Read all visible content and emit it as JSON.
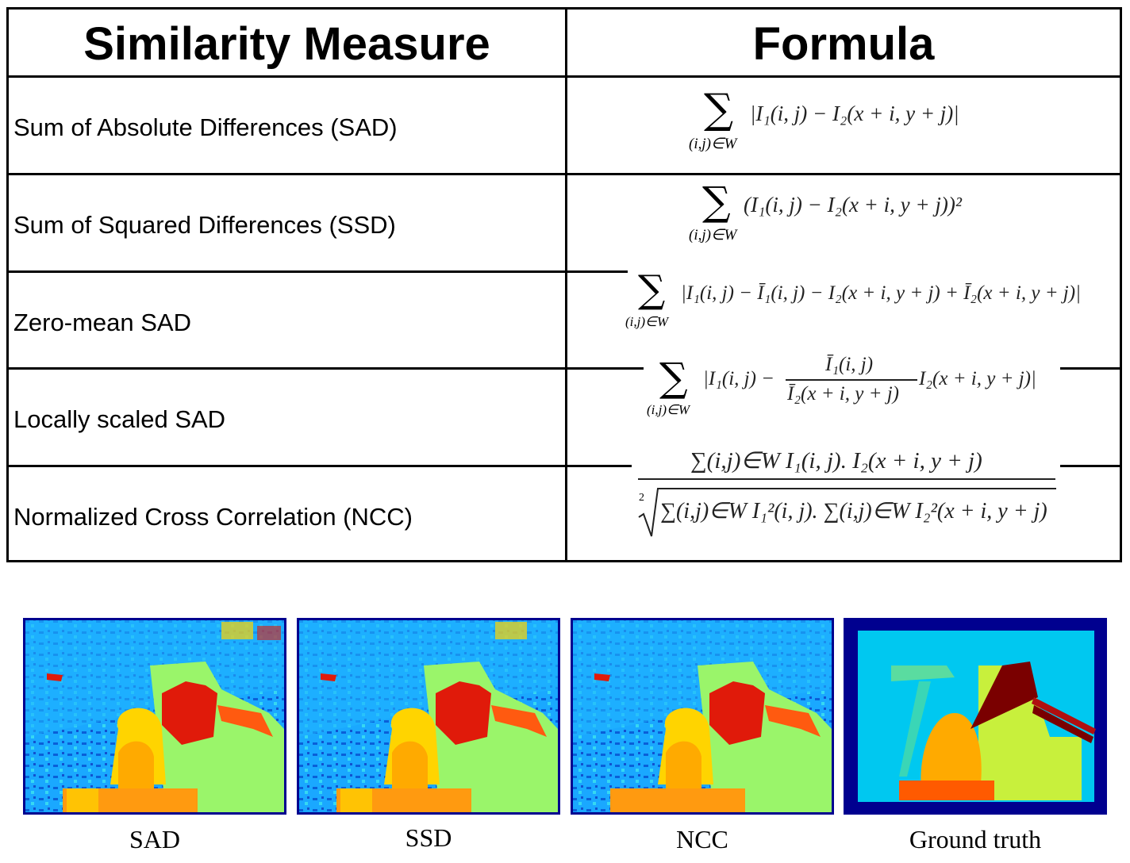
{
  "table": {
    "header": {
      "measure": "Similarity Measure",
      "formula": "Formula"
    },
    "rows": [
      {
        "measure": "Sum of Absolute Differences (SAD)"
      },
      {
        "measure": "Sum of Squared Differences (SSD)"
      },
      {
        "measure": "Zero-mean SAD"
      },
      {
        "measure": "Locally scaled SAD"
      },
      {
        "measure": "Normalized Cross Correlation (NCC)"
      }
    ],
    "formulas": {
      "sad_body": "|I₁(i, j) − I₂(x + i, y + j)|",
      "ssd_body": "(I₁(i, j) − I₂(x + i, y + j))²",
      "zsad_body": "|I₁(i, j) − Ī₁(i, j) − I₂(x + i, y + j) + Ī₂(x + i, y + j)|",
      "lssad_left": "|I₁(i, j) −",
      "lssad_num": "Ī₁(i, j)",
      "lssad_den": "Ī₂(x + i, y + j)",
      "lssad_right": "I₂(x + i, y + j)|",
      "ncc_num": "∑(i,j)∈W I₁(i, j). I₂(x + i, y + j)",
      "ncc_den": "∑(i,j)∈W I₁²(i, j). ∑(i,j)∈W I₂²(x + i, y + j)",
      "ncc_root_index": "2",
      "sum_symbol": "∑",
      "sum_subscript": "(i,j)∈W"
    }
  },
  "maps": [
    {
      "caption": "SAD"
    },
    {
      "caption": "SSD"
    },
    {
      "caption": "NCC"
    },
    {
      "caption": "Ground truth"
    }
  ],
  "colors": {
    "border": "#000000",
    "jet_dark_blue": "#00008f",
    "jet_cyan": "#00c8f0",
    "jet_green": "#9af56a",
    "jet_yellow": "#ffd400",
    "jet_orange": "#ff9a10",
    "jet_red": "#e01a0a",
    "jet_dark_red": "#7a0000"
  }
}
